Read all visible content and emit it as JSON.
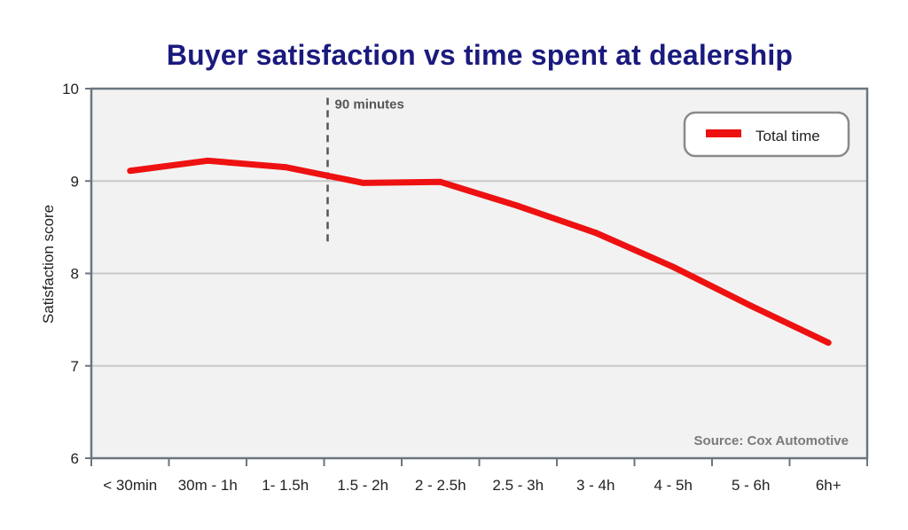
{
  "chart_data": {
    "type": "line",
    "title": "Buyer satisfaction vs time spent at dealership",
    "xlabel": "",
    "ylabel": "Satisfaction score",
    "ylim": [
      6,
      10
    ],
    "yticks": [
      "6",
      "7",
      "8",
      "9",
      "10"
    ],
    "grid": "horizontal",
    "legend_position": "top-right",
    "categories": [
      "< 30min",
      "30m - 1h",
      "1- 1.5h",
      "1.5 - 2h",
      "2 - 2.5h",
      "2.5 - 3h",
      "3 - 4h",
      "4 - 5h",
      "5 - 6h",
      "6h+"
    ],
    "series": [
      {
        "name": "Total time",
        "color": "#ee1111",
        "values": [
          9.11,
          9.22,
          9.15,
          8.98,
          8.99,
          8.73,
          8.44,
          8.07,
          7.65,
          7.25
        ]
      }
    ],
    "annotations": [
      {
        "text": "90 minutes",
        "at_category_boundary": 3,
        "y_range": [
          8.3,
          9.9
        ],
        "style": "dashed-vertical-line"
      }
    ],
    "source": "Source: Cox Automotive",
    "colors": {
      "title": "#1a1a7e",
      "plot_bg": "#f2f2f2",
      "axis": "#6b7680",
      "grid": "#c8c8c8"
    }
  }
}
